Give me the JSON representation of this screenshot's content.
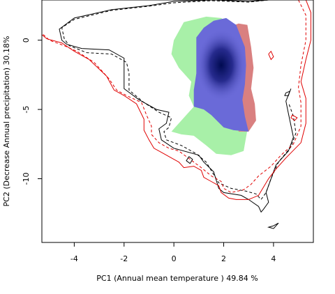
{
  "chart_data": {
    "type": "contour",
    "xlabel": "PC1 (Annual mean temperature ) 49.84 %",
    "ylabel": "PC2 (Decrease Annual precipitation) 30.18%",
    "xlim": [
      -5.3,
      5.6
    ],
    "ylim": [
      -14.6,
      2.9
    ],
    "xticks": [
      -4,
      -2,
      0,
      2,
      4
    ],
    "xtick_labels": [
      "-4",
      "-2",
      "0",
      "2",
      "4"
    ],
    "yticks": [
      0,
      -5,
      -10
    ],
    "ytick_labels": [
      "0",
      "-5",
      "-10"
    ],
    "grid": false,
    "colors": {
      "green_region": "#a8f0a8",
      "red_region": "#d98080",
      "blue_overlap": "#6a6ad8",
      "blue_core": "#000a50",
      "contour_black": "#000000",
      "contour_red": "#e00000"
    },
    "regions": [
      {
        "name": "green",
        "points": [
          [
            -0.1,
            -6.6
          ],
          [
            0.4,
            -5.6
          ],
          [
            0.8,
            -4.8
          ],
          [
            0.6,
            -4.0
          ],
          [
            0.7,
            -3.0
          ],
          [
            0.2,
            -2.0
          ],
          [
            -0.1,
            -1.0
          ],
          [
            0.0,
            0.0
          ],
          [
            0.4,
            1.3
          ],
          [
            1.3,
            1.7
          ],
          [
            1.9,
            1.6
          ],
          [
            2.3,
            1.1
          ],
          [
            2.4,
            0.3
          ],
          [
            2.3,
            -1.0
          ],
          [
            2.8,
            -2.2
          ],
          [
            2.9,
            -3.4
          ],
          [
            2.9,
            -5.0
          ],
          [
            3.0,
            -6.0
          ],
          [
            2.9,
            -7.0
          ],
          [
            2.8,
            -8.0
          ],
          [
            2.3,
            -8.3
          ],
          [
            1.7,
            -8.2
          ],
          [
            1.3,
            -7.6
          ],
          [
            0.8,
            -6.9
          ],
          [
            0.3,
            -6.8
          ]
        ]
      },
      {
        "name": "red",
        "points": [
          [
            2.3,
            1.0
          ],
          [
            2.6,
            1.2
          ],
          [
            2.95,
            1.1
          ],
          [
            3.1,
            -0.5
          ],
          [
            3.2,
            -2.0
          ],
          [
            3.1,
            -3.5
          ],
          [
            3.25,
            -4.6
          ],
          [
            3.3,
            -5.8
          ],
          [
            3.0,
            -6.6
          ],
          [
            2.6,
            -6.6
          ],
          [
            2.5,
            -5.0
          ],
          [
            2.6,
            -3.0
          ],
          [
            2.4,
            -1.0
          ]
        ]
      },
      {
        "name": "blue_overlap",
        "points": [
          [
            0.8,
            -4.8
          ],
          [
            0.8,
            -3.6
          ],
          [
            0.9,
            -2.4
          ],
          [
            0.9,
            -1.2
          ],
          [
            0.9,
            0.2
          ],
          [
            1.2,
            0.9
          ],
          [
            1.6,
            1.4
          ],
          [
            2.1,
            1.6
          ],
          [
            2.5,
            1.1
          ],
          [
            2.85,
            -0.5
          ],
          [
            2.9,
            -1.8
          ],
          [
            2.85,
            -3.2
          ],
          [
            2.75,
            -4.3
          ],
          [
            2.85,
            -5.5
          ],
          [
            3.0,
            -6.6
          ],
          [
            2.4,
            -6.5
          ],
          [
            2.0,
            -6.3
          ],
          [
            1.5,
            -5.4
          ],
          [
            1.2,
            -5.0
          ]
        ]
      }
    ],
    "density_peak": [
      1.9,
      -1.8
    ],
    "contours": [
      {
        "name": "black-solid",
        "color": "#000000",
        "dashed": false,
        "points": [
          [
            3.8,
            2.9
          ],
          [
            3.0,
            2.8
          ],
          [
            1.6,
            2.9
          ],
          [
            0.0,
            2.8
          ],
          [
            -1.0,
            2.5
          ],
          [
            -2.5,
            2.2
          ],
          [
            -4.0,
            1.6
          ],
          [
            -4.6,
            0.8
          ],
          [
            -4.5,
            0.0
          ],
          [
            -4.3,
            -0.3
          ],
          [
            -3.7,
            -0.6
          ],
          [
            -2.6,
            -0.7
          ],
          [
            -2.0,
            -1.3
          ],
          [
            -2.0,
            -2.3
          ],
          [
            -2.0,
            -3.5
          ],
          [
            -1.4,
            -4.3
          ],
          [
            -0.7,
            -5.0
          ],
          [
            -0.2,
            -5.2
          ],
          [
            -0.3,
            -6.0
          ],
          [
            -0.6,
            -6.4
          ],
          [
            -0.5,
            -7.2
          ],
          [
            0.0,
            -7.8
          ],
          [
            1.0,
            -8.3
          ],
          [
            1.2,
            -8.8
          ],
          [
            1.6,
            -9.5
          ],
          [
            1.8,
            -10.7
          ],
          [
            2.0,
            -11.0
          ],
          [
            2.7,
            -11.2
          ],
          [
            3.0,
            -11.5
          ],
          [
            3.4,
            -12.0
          ],
          [
            3.5,
            -12.4
          ],
          [
            3.6,
            -12.2
          ],
          [
            3.8,
            -11.7
          ],
          [
            3.7,
            -11.0
          ],
          [
            3.8,
            -10.5
          ],
          [
            4.1,
            -9.0
          ],
          [
            4.6,
            -8.0
          ],
          [
            4.8,
            -7.0
          ],
          [
            4.6,
            -5.3
          ],
          [
            4.5,
            -4.4
          ],
          [
            4.7,
            -3.5
          ]
        ]
      },
      {
        "name": "black-dashed",
        "color": "#000000",
        "dashed": true,
        "points": [
          [
            3.8,
            2.9
          ],
          [
            3.0,
            2.75
          ],
          [
            1.5,
            2.85
          ],
          [
            0.0,
            2.7
          ],
          [
            -1.0,
            2.45
          ],
          [
            -2.5,
            2.15
          ],
          [
            -4.0,
            1.5
          ],
          [
            -4.5,
            0.9
          ],
          [
            -4.4,
            0.1
          ],
          [
            -4.2,
            -0.4
          ],
          [
            -3.5,
            -0.9
          ],
          [
            -2.5,
            -1.0
          ],
          [
            -1.9,
            -1.6
          ],
          [
            -1.8,
            -2.4
          ],
          [
            -1.8,
            -3.6
          ],
          [
            -1.2,
            -4.5
          ],
          [
            -0.6,
            -5.2
          ],
          [
            -0.1,
            -5.6
          ],
          [
            -0.2,
            -6.3
          ],
          [
            -0.4,
            -6.6
          ],
          [
            -0.3,
            -7.2
          ],
          [
            0.3,
            -7.6
          ],
          [
            0.9,
            -8.2
          ],
          [
            1.3,
            -8.8
          ],
          [
            1.6,
            -9.7
          ],
          [
            1.8,
            -10.3
          ],
          [
            2.3,
            -10.7
          ],
          [
            2.9,
            -10.9
          ],
          [
            3.3,
            -11.1
          ],
          [
            3.5,
            -11.5
          ],
          [
            3.7,
            -11.0
          ],
          [
            3.9,
            -10.0
          ],
          [
            4.2,
            -8.8
          ],
          [
            4.7,
            -7.7
          ],
          [
            4.9,
            -6.7
          ],
          [
            4.8,
            -5.5
          ],
          [
            4.6,
            -4.5
          ]
        ]
      },
      {
        "name": "red-solid",
        "color": "#e00000",
        "dashed": false,
        "points": [
          [
            5.3,
            2.9
          ],
          [
            5.5,
            2.0
          ],
          [
            5.5,
            0.0
          ],
          [
            5.3,
            -1.4
          ],
          [
            5.1,
            -3.0
          ],
          [
            5.3,
            -4.2
          ],
          [
            5.3,
            -6.0
          ],
          [
            5.1,
            -7.4
          ],
          [
            4.5,
            -8.5
          ],
          [
            4.1,
            -9.3
          ],
          [
            3.8,
            -10.0
          ],
          [
            3.6,
            -10.6
          ],
          [
            3.4,
            -11.2
          ],
          [
            3.0,
            -11.5
          ],
          [
            2.5,
            -11.5
          ],
          [
            2.2,
            -11.4
          ],
          [
            1.9,
            -11.0
          ],
          [
            1.8,
            -10.5
          ],
          [
            1.4,
            -10.1
          ],
          [
            1.2,
            -9.9
          ],
          [
            1.1,
            -9.4
          ],
          [
            0.8,
            -9.1
          ],
          [
            0.4,
            -9.2
          ],
          [
            0.2,
            -8.8
          ],
          [
            -0.2,
            -8.4
          ],
          [
            -0.4,
            -8.2
          ],
          [
            -0.8,
            -7.8
          ],
          [
            -1.0,
            -7.2
          ],
          [
            -1.2,
            -6.5
          ],
          [
            -1.2,
            -5.7
          ],
          [
            -1.5,
            -4.6
          ],
          [
            -2.0,
            -4.0
          ],
          [
            -2.4,
            -3.6
          ],
          [
            -2.7,
            -2.6
          ],
          [
            -3.4,
            -1.4
          ],
          [
            -4.0,
            -0.8
          ],
          [
            -4.5,
            -0.2
          ],
          [
            -5.1,
            0.1
          ],
          [
            -5.3,
            0.4
          ]
        ]
      },
      {
        "name": "red-dashed",
        "color": "#e00000",
        "dashed": true,
        "points": [
          [
            5.0,
            2.9
          ],
          [
            5.3,
            1.8
          ],
          [
            5.3,
            0.0
          ],
          [
            5.1,
            -1.8
          ],
          [
            5.0,
            -3.4
          ],
          [
            5.1,
            -4.5
          ],
          [
            5.1,
            -6.2
          ],
          [
            4.8,
            -7.5
          ],
          [
            4.3,
            -8.3
          ],
          [
            3.9,
            -9.1
          ],
          [
            3.4,
            -9.8
          ],
          [
            3.1,
            -10.4
          ],
          [
            2.8,
            -10.8
          ],
          [
            2.3,
            -11.0
          ],
          [
            2.0,
            -10.7
          ],
          [
            1.9,
            -10.2
          ],
          [
            1.5,
            -9.8
          ],
          [
            1.1,
            -9.2
          ],
          [
            0.8,
            -8.8
          ],
          [
            0.5,
            -8.4
          ],
          [
            0.2,
            -8.0
          ],
          [
            -0.2,
            -7.8
          ],
          [
            -0.6,
            -7.4
          ],
          [
            -0.9,
            -6.8
          ],
          [
            -0.9,
            -6.2
          ],
          [
            -1.1,
            -5.4
          ],
          [
            -1.3,
            -4.5
          ],
          [
            -1.9,
            -4.0
          ],
          [
            -2.3,
            -3.6
          ],
          [
            -2.6,
            -2.8
          ],
          [
            -3.2,
            -1.6
          ],
          [
            -3.9,
            -0.8
          ],
          [
            -4.4,
            -0.4
          ],
          [
            -5.0,
            0.0
          ],
          [
            -5.3,
            0.5
          ]
        ]
      },
      {
        "name": "red-blob-a",
        "color": "#e00000",
        "dashed": false,
        "points": [
          [
            3.8,
            -1.0
          ],
          [
            3.9,
            -1.4
          ],
          [
            4.0,
            -1.2
          ],
          [
            3.9,
            -0.8
          ],
          [
            3.8,
            -1.0
          ]
        ]
      },
      {
        "name": "red-blob-b",
        "color": "#e00000",
        "dashed": false,
        "points": [
          [
            4.75,
            -5.4
          ],
          [
            4.95,
            -5.6
          ],
          [
            4.85,
            -5.8
          ],
          [
            4.7,
            -5.6
          ],
          [
            4.75,
            -5.4
          ]
        ]
      },
      {
        "name": "black-blob-a",
        "color": "#000000",
        "dashed": false,
        "points": [
          [
            4.0,
            -13.4
          ],
          [
            4.2,
            -13.2
          ],
          [
            4.0,
            -13.6
          ],
          [
            3.8,
            -13.5
          ],
          [
            4.0,
            -13.4
          ]
        ]
      },
      {
        "name": "black-blob-b",
        "color": "#000000",
        "dashed": false,
        "points": [
          [
            0.6,
            -8.4
          ],
          [
            0.75,
            -8.6
          ],
          [
            0.65,
            -8.9
          ],
          [
            0.5,
            -8.7
          ],
          [
            0.6,
            -8.4
          ]
        ]
      },
      {
        "name": "black-blob-c",
        "color": "#000000",
        "dashed": false,
        "points": [
          [
            4.5,
            -3.8
          ],
          [
            4.65,
            -3.7
          ],
          [
            4.6,
            -4.0
          ],
          [
            4.45,
            -4.0
          ],
          [
            4.5,
            -3.8
          ]
        ]
      }
    ]
  }
}
